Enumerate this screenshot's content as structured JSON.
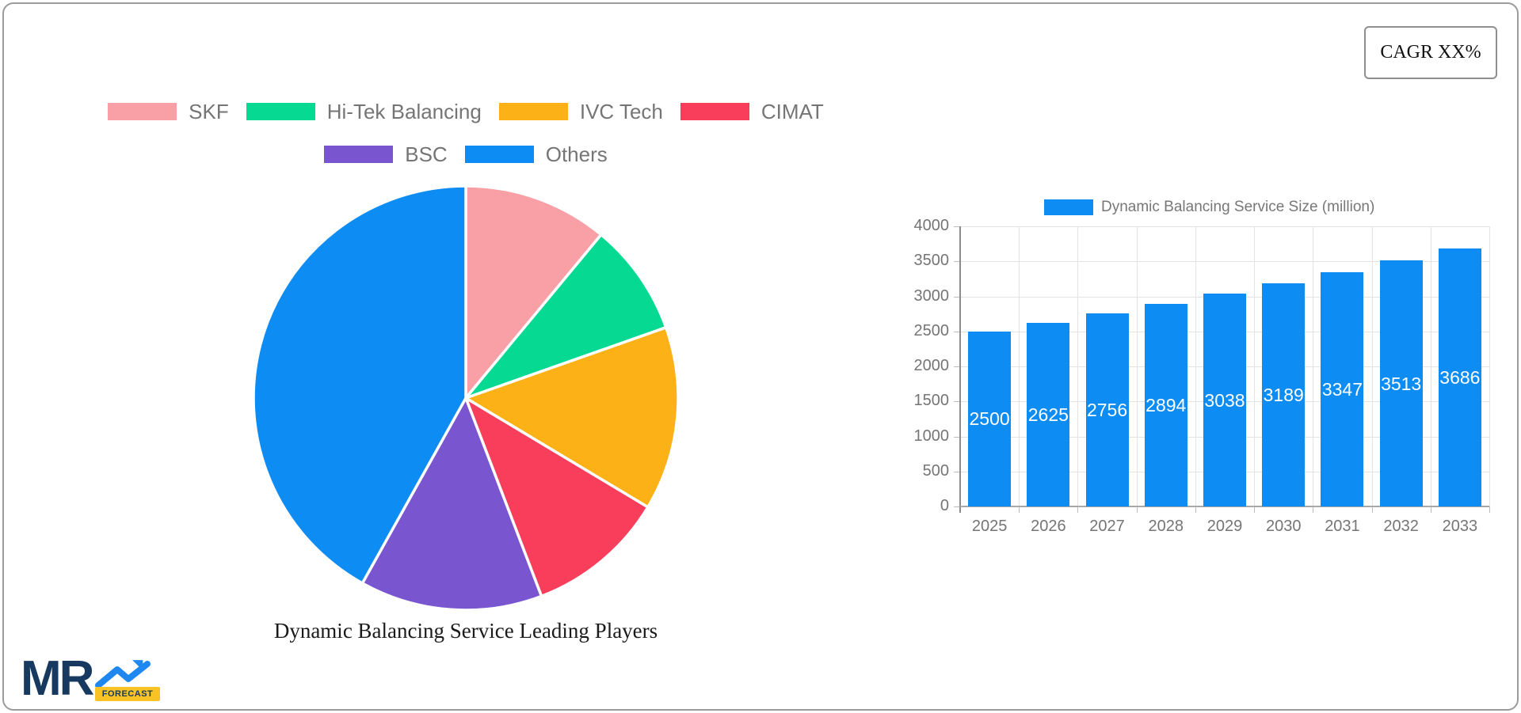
{
  "card": {
    "cagr_label": "CAGR XX%"
  },
  "logo": {
    "text": "MR",
    "badge": "FORECAST"
  },
  "colors": {
    "card_border": "#9b9b9b",
    "logo_navy": "#17395f",
    "logo_arrow_blue": "#1e88f0",
    "logo_badge_yellow": "#f9c326",
    "grid": "#e3e3e3",
    "axis": "#8c8c8c",
    "tick_text": "#757575"
  },
  "chart_data": [
    {
      "type": "pie",
      "title": "Dynamic Balancing Service Leading Players",
      "labels": [
        "SKF",
        "Hi-Tek Balancing",
        "IVC Tech",
        "CIMAT",
        "BSC",
        "Others"
      ],
      "values_percent": [
        11.0,
        8.6,
        14.0,
        10.6,
        13.9,
        41.9
      ],
      "colors": [
        "#F99FA6",
        "#06D992",
        "#FCB116",
        "#F93E5C",
        "#7A55D0",
        "#0D8CF4"
      ],
      "start_angle_deg": 0,
      "direction": "clockwise",
      "slice_border_color": "#ffffff",
      "legend_position": "top",
      "legend_row_break": 4
    },
    {
      "type": "bar",
      "series_label": "Dynamic Balancing Service Size (million)",
      "categories": [
        "2025",
        "2026",
        "2027",
        "2028",
        "2029",
        "2030",
        "2031",
        "2032",
        "2033"
      ],
      "values": [
        2500,
        2625,
        2756,
        2894,
        3038,
        3189,
        3347,
        3513,
        3686
      ],
      "bar_color": "#0D8CF4",
      "value_label_color": "#ffffff",
      "ylim": [
        0,
        4000
      ],
      "ytick_step": 500,
      "grid": true,
      "legend_position": "top"
    }
  ]
}
